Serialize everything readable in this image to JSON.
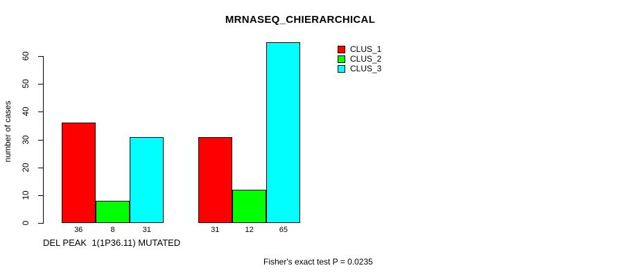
{
  "chart_data": {
    "type": "bar",
    "title": "MRNASEQ_CHIERARCHICAL",
    "ylabel": "number of cases",
    "xlabel": "DEL PEAK  1(1P36.11) MUTATED",
    "footnote": "Fisher's exact test P = 0.0235",
    "series": [
      {
        "name": "CLUS_1",
        "color": "#ff0000",
        "values": [
          36,
          31
        ]
      },
      {
        "name": "CLUS_2",
        "color": "#00ff00",
        "values": [
          8,
          12
        ]
      },
      {
        "name": "CLUS_3",
        "color": "#00ffff",
        "values": [
          31,
          65
        ]
      }
    ],
    "bar_value_labels": [
      [
        36,
        8,
        31
      ],
      [
        31,
        12,
        65
      ]
    ],
    "yticks": [
      0,
      10,
      20,
      30,
      40,
      50,
      60
    ],
    "ylim": [
      0,
      65
    ],
    "grid": false,
    "legend_position": "top-right",
    "background_color": "#ffffff",
    "axis_color": "#000000"
  }
}
